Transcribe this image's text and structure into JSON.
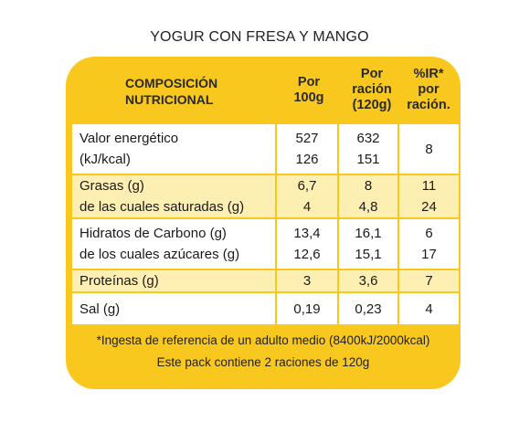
{
  "title": "YOGUR CON FRESA Y MANGO",
  "header": {
    "composicion_line1": "COMPOSICIÓN",
    "composicion_line2": "NUTRICIONAL",
    "por_line1": "Por",
    "por_line2": "100g",
    "racion_line1": "Por",
    "racion_line2": "ración",
    "racion_line3": "(120g)",
    "ir_line1": "%IR*",
    "ir_line2": "por",
    "ir_line3": "ración."
  },
  "rows": [
    {
      "name": [
        "Valor energético",
        "(kJ/kcal)"
      ],
      "per100": [
        "527",
        "126"
      ],
      "perRacion": [
        "632",
        "151"
      ],
      "ir": [
        "8"
      ]
    },
    {
      "name": [
        "Grasas (g)",
        "de las cuales saturadas (g)"
      ],
      "per100": [
        "6,7",
        "4"
      ],
      "perRacion": [
        "8",
        "4,8"
      ],
      "ir": [
        "11",
        "24"
      ]
    },
    {
      "name": [
        "Hidratos de Carbono (g)",
        "de los cuales azúcares (g)"
      ],
      "per100": [
        "13,4",
        "12,6"
      ],
      "perRacion": [
        "16,1",
        "15,1"
      ],
      "ir": [
        "6",
        "17"
      ]
    },
    {
      "name": [
        "Proteínas (g)"
      ],
      "per100": [
        "3"
      ],
      "perRacion": [
        "3,6"
      ],
      "ir": [
        "7"
      ]
    },
    {
      "name": [
        "Sal (g)"
      ],
      "per100": [
        "0,19"
      ],
      "perRacion": [
        "0,23"
      ],
      "ir": [
        "4"
      ]
    }
  ],
  "footer": {
    "line1": "*Ingesta de referencia de un adulto medio (8400kJ/2000kcal)",
    "line2": "Este pack contiene 2 raciones de 120g"
  }
}
